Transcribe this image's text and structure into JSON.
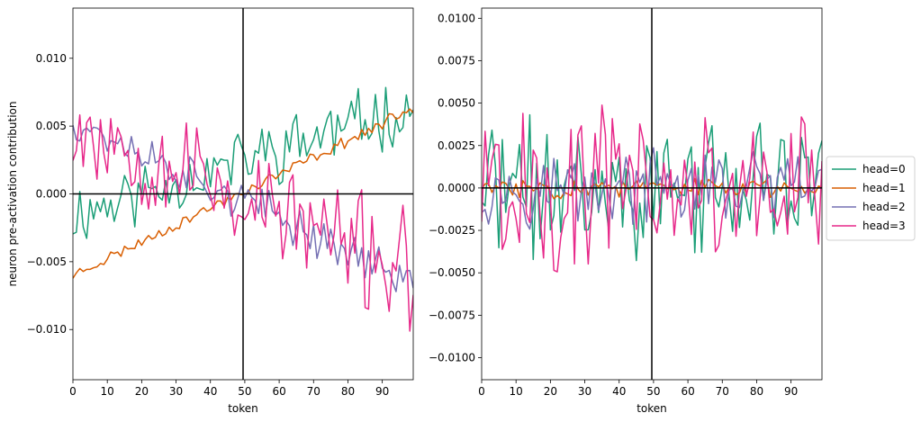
{
  "chart_data": [
    {
      "type": "line",
      "xlabel": "token",
      "ylabel": "neuron pre-activation contribution",
      "xlim": [
        0,
        99
      ],
      "ylim": [
        -0.0137,
        0.0137
      ],
      "xticks": [
        0,
        10,
        20,
        30,
        40,
        50,
        60,
        70,
        80,
        90
      ],
      "yticks": [
        -0.01,
        -0.005,
        0.0,
        0.005,
        0.01
      ],
      "ytick_labels": [
        "−0.010",
        "−0.005",
        "0.000",
        "0.005",
        "0.010"
      ],
      "vline_x": 49.5,
      "hline_y": 0.0,
      "series": [
        {
          "name": "head=0",
          "color": "#1b9e77",
          "start": -0.0015,
          "end": 0.0065,
          "amp": 0.0026,
          "seed": 11
        },
        {
          "name": "head=1",
          "color": "#d95f02",
          "start": -0.006,
          "end": 0.0063,
          "amp": 0.00045,
          "seed": 23
        },
        {
          "name": "head=2",
          "color": "#7570b3",
          "start": 0.0055,
          "end": -0.0065,
          "amp": 0.0016,
          "seed": 37
        },
        {
          "name": "head=3",
          "color": "#e7298a",
          "start": 0.0055,
          "end": -0.006,
          "amp": 0.0045,
          "seed": 53
        }
      ]
    },
    {
      "type": "line",
      "xlabel": "token",
      "ylabel": "",
      "xlim": [
        0,
        99
      ],
      "ylim": [
        -0.0113,
        0.0106
      ],
      "xticks": [
        0,
        10,
        20,
        30,
        40,
        50,
        60,
        70,
        80,
        90
      ],
      "yticks": [
        -0.01,
        -0.0075,
        -0.005,
        -0.0025,
        0.0,
        0.0025,
        0.005,
        0.0075,
        0.01
      ],
      "ytick_labels": [
        "−0.0100",
        "−0.0075",
        "−0.0050",
        "−0.0025",
        "0.0000",
        "0.0025",
        "0.0050",
        "0.0075",
        "0.0100"
      ],
      "vline_x": 49.5,
      "hline_y": 0.0,
      "series": [
        {
          "name": "head=0",
          "color": "#1b9e77",
          "start": 0.0,
          "end": 0.0,
          "amp": 0.0042,
          "seed": 71
        },
        {
          "name": "head=1",
          "color": "#d95f02",
          "start": 0.0,
          "end": 0.0,
          "amp": 0.0006,
          "seed": 83
        },
        {
          "name": "head=2",
          "color": "#7570b3",
          "start": 0.0,
          "end": 0.0,
          "amp": 0.0022,
          "seed": 97
        },
        {
          "name": "head=3",
          "color": "#e7298a",
          "start": 0.0,
          "end": 0.0,
          "amp": 0.0052,
          "seed": 101
        }
      ]
    }
  ],
  "legend": [
    "head=0",
    "head=1",
    "head=2",
    "head=3"
  ]
}
